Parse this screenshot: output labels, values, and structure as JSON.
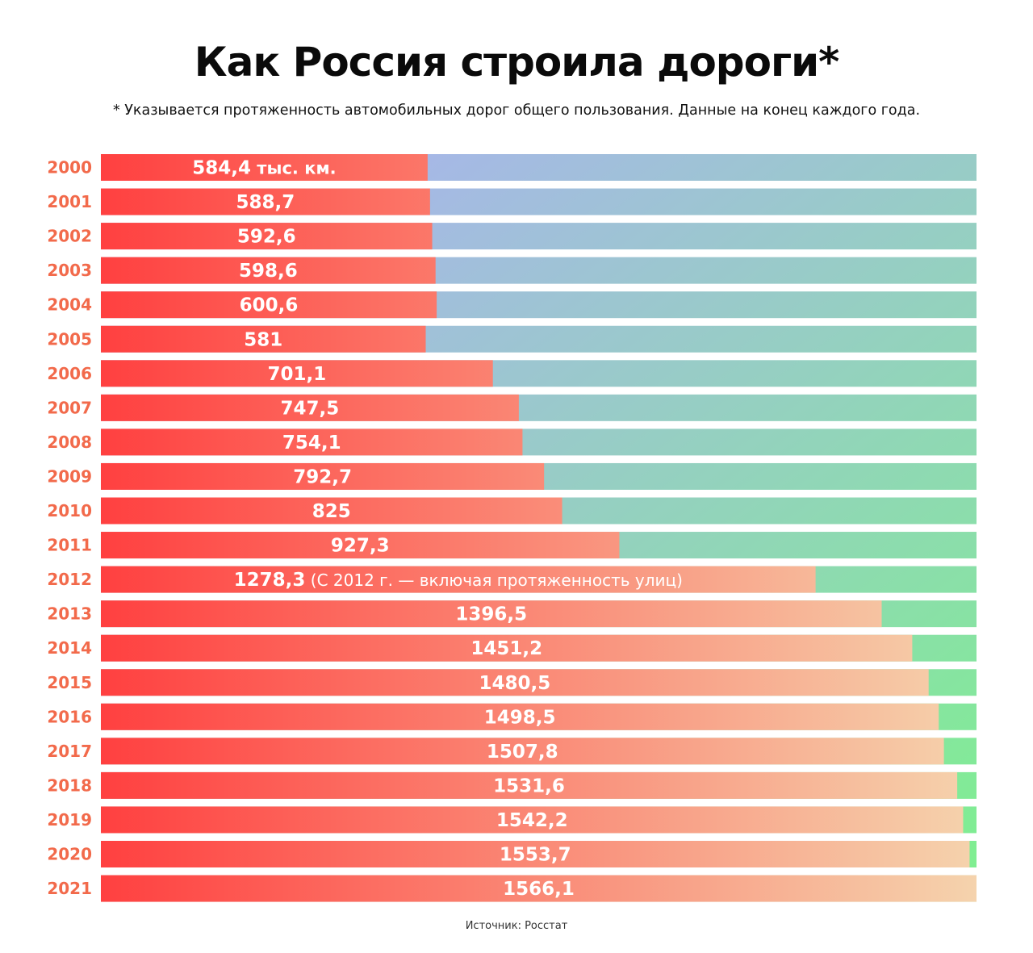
{
  "title": "Как Россия строила дороги*",
  "subtitle": "* Указывается протяженность автомобильных дорог общего пользования. Данные на конец каждого года.",
  "source": "Источник: Росстат",
  "colors": {
    "year_label": "#f26a4b",
    "bar_left": "#ff4040",
    "bar_right": "#f5d3ad",
    "rest_top": "#a6b8e6",
    "rest_bottom": "#7ef08e"
  },
  "chart_data": {
    "type": "bar",
    "orientation": "horizontal",
    "categories": [
      "2000",
      "2001",
      "2002",
      "2003",
      "2004",
      "2005",
      "2006",
      "2007",
      "2008",
      "2009",
      "2010",
      "2011",
      "2012",
      "2013",
      "2014",
      "2015",
      "2016",
      "2017",
      "2018",
      "2019",
      "2020",
      "2021"
    ],
    "values": [
      584.4,
      588.7,
      592.6,
      598.6,
      600.6,
      581,
      701.1,
      747.5,
      754.1,
      792.7,
      825,
      927.3,
      1278.3,
      1396.5,
      1451.2,
      1480.5,
      1498.5,
      1507.8,
      1531.6,
      1542.2,
      1553.7,
      1566.1
    ],
    "value_labels": [
      "584,4",
      "588,7",
      "592,6",
      "598,6",
      "600,6",
      "581",
      "701,1",
      "747,5",
      "754,1",
      "792,7",
      "825",
      "927,3",
      "1278,3",
      "1396,5",
      "1451,2",
      "1480,5",
      "1498,5",
      "1507,8",
      "1531,6",
      "1542,2",
      "1553,7",
      "1566,1"
    ],
    "first_label_unit": " тыс. км.",
    "annotation": {
      "category": "2012",
      "text": " (С 2012 г. — включая протяженность улиц)"
    },
    "xlim": [
      0,
      1566.1
    ]
  }
}
